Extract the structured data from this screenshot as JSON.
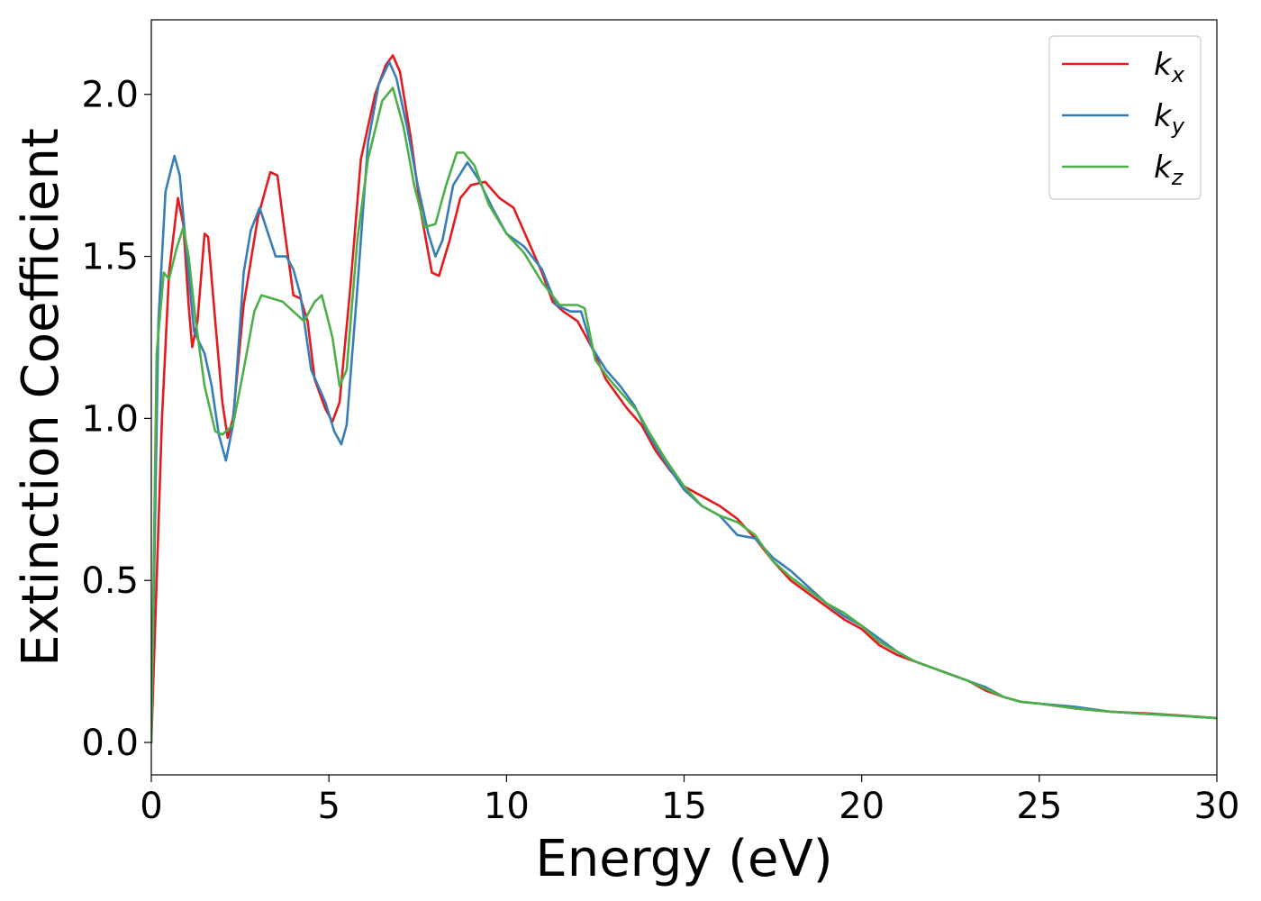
{
  "chart_data": {
    "type": "line",
    "title": "",
    "xlabel": "Energy (eV)",
    "ylabel": "Extinction Coefficient",
    "xlim": [
      0,
      30
    ],
    "ylim": [
      -0.1,
      2.23
    ],
    "xticks": [
      0,
      5,
      10,
      15,
      20,
      25,
      30
    ],
    "xtick_labels": [
      "0",
      "5",
      "10",
      "15",
      "20",
      "25",
      "30"
    ],
    "yticks": [
      0.0,
      0.5,
      1.0,
      1.5,
      2.0
    ],
    "ytick_labels": [
      "0.0",
      "0.5",
      "1.0",
      "1.5",
      "2.0"
    ],
    "grid": false,
    "legend_position": "top-right",
    "series": [
      {
        "name": "k_x",
        "base": "k",
        "sub": "x",
        "color": "#e41a1c",
        "points": [
          [
            0,
            0.0
          ],
          [
            0.3,
            1.0
          ],
          [
            0.5,
            1.45
          ],
          [
            0.75,
            1.68
          ],
          [
            0.9,
            1.6
          ],
          [
            1.05,
            1.35
          ],
          [
            1.15,
            1.22
          ],
          [
            1.3,
            1.3
          ],
          [
            1.5,
            1.57
          ],
          [
            1.6,
            1.56
          ],
          [
            1.8,
            1.3
          ],
          [
            2.0,
            1.05
          ],
          [
            2.15,
            0.94
          ],
          [
            2.3,
            1.0
          ],
          [
            2.6,
            1.35
          ],
          [
            3.0,
            1.62
          ],
          [
            3.35,
            1.76
          ],
          [
            3.55,
            1.75
          ],
          [
            3.75,
            1.58
          ],
          [
            4.0,
            1.38
          ],
          [
            4.2,
            1.37
          ],
          [
            4.4,
            1.3
          ],
          [
            4.6,
            1.12
          ],
          [
            4.9,
            1.03
          ],
          [
            5.1,
            0.99
          ],
          [
            5.3,
            1.05
          ],
          [
            5.6,
            1.4
          ],
          [
            5.9,
            1.8
          ],
          [
            6.3,
            2.0
          ],
          [
            6.6,
            2.09
          ],
          [
            6.8,
            2.12
          ],
          [
            7.0,
            2.07
          ],
          [
            7.3,
            1.87
          ],
          [
            7.6,
            1.63
          ],
          [
            7.9,
            1.45
          ],
          [
            8.1,
            1.44
          ],
          [
            8.4,
            1.55
          ],
          [
            8.7,
            1.68
          ],
          [
            9.0,
            1.72
          ],
          [
            9.4,
            1.73
          ],
          [
            9.8,
            1.68
          ],
          [
            10.2,
            1.65
          ],
          [
            10.6,
            1.55
          ],
          [
            11.0,
            1.45
          ],
          [
            11.3,
            1.36
          ],
          [
            11.6,
            1.33
          ],
          [
            12.0,
            1.3
          ],
          [
            12.4,
            1.22
          ],
          [
            12.8,
            1.12
          ],
          [
            13.4,
            1.03
          ],
          [
            13.8,
            0.98
          ],
          [
            14.2,
            0.9
          ],
          [
            14.6,
            0.84
          ],
          [
            15.0,
            0.79
          ],
          [
            15.5,
            0.76
          ],
          [
            16.0,
            0.73
          ],
          [
            16.5,
            0.69
          ],
          [
            17.0,
            0.63
          ],
          [
            17.5,
            0.56
          ],
          [
            18.0,
            0.5
          ],
          [
            18.5,
            0.46
          ],
          [
            19.0,
            0.42
          ],
          [
            19.5,
            0.38
          ],
          [
            20.0,
            0.35
          ],
          [
            20.5,
            0.3
          ],
          [
            21.0,
            0.27
          ],
          [
            21.5,
            0.25
          ],
          [
            22.0,
            0.23
          ],
          [
            22.5,
            0.21
          ],
          [
            23.0,
            0.19
          ],
          [
            23.5,
            0.16
          ],
          [
            24.0,
            0.14
          ],
          [
            24.5,
            0.125
          ],
          [
            25.0,
            0.12
          ],
          [
            26.0,
            0.105
          ],
          [
            27.0,
            0.095
          ],
          [
            28.0,
            0.09
          ],
          [
            29.0,
            0.083
          ],
          [
            30.0,
            0.075
          ]
        ]
      },
      {
        "name": "k_y",
        "base": "k",
        "sub": "y",
        "color": "#377eb8",
        "points": [
          [
            0,
            0.0
          ],
          [
            0.2,
            1.3
          ],
          [
            0.4,
            1.7
          ],
          [
            0.65,
            1.81
          ],
          [
            0.8,
            1.75
          ],
          [
            1.0,
            1.5
          ],
          [
            1.2,
            1.27
          ],
          [
            1.5,
            1.2
          ],
          [
            1.7,
            1.1
          ],
          [
            1.9,
            0.95
          ],
          [
            2.1,
            0.87
          ],
          [
            2.3,
            0.98
          ],
          [
            2.6,
            1.45
          ],
          [
            2.8,
            1.58
          ],
          [
            3.05,
            1.65
          ],
          [
            3.2,
            1.6
          ],
          [
            3.5,
            1.5
          ],
          [
            3.8,
            1.5
          ],
          [
            4.0,
            1.46
          ],
          [
            4.2,
            1.38
          ],
          [
            4.5,
            1.15
          ],
          [
            4.9,
            1.05
          ],
          [
            5.15,
            0.96
          ],
          [
            5.35,
            0.92
          ],
          [
            5.5,
            0.98
          ],
          [
            5.8,
            1.4
          ],
          [
            6.1,
            1.85
          ],
          [
            6.4,
            2.03
          ],
          [
            6.7,
            2.1
          ],
          [
            6.9,
            2.05
          ],
          [
            7.2,
            1.9
          ],
          [
            7.5,
            1.72
          ],
          [
            7.8,
            1.57
          ],
          [
            8.0,
            1.5
          ],
          [
            8.2,
            1.55
          ],
          [
            8.5,
            1.72
          ],
          [
            8.9,
            1.79
          ],
          [
            9.2,
            1.74
          ],
          [
            9.6,
            1.65
          ],
          [
            10.0,
            1.57
          ],
          [
            10.5,
            1.53
          ],
          [
            11.0,
            1.46
          ],
          [
            11.4,
            1.35
          ],
          [
            11.8,
            1.33
          ],
          [
            12.1,
            1.33
          ],
          [
            12.4,
            1.22
          ],
          [
            12.8,
            1.15
          ],
          [
            13.2,
            1.1
          ],
          [
            13.6,
            1.04
          ],
          [
            14.0,
            0.95
          ],
          [
            14.5,
            0.86
          ],
          [
            15.0,
            0.78
          ],
          [
            15.5,
            0.73
          ],
          [
            16.0,
            0.7
          ],
          [
            16.5,
            0.64
          ],
          [
            17.0,
            0.63
          ],
          [
            17.5,
            0.57
          ],
          [
            18.0,
            0.53
          ],
          [
            18.5,
            0.48
          ],
          [
            19.0,
            0.43
          ],
          [
            19.5,
            0.39
          ],
          [
            20.0,
            0.36
          ],
          [
            20.5,
            0.32
          ],
          [
            21.0,
            0.28
          ],
          [
            21.5,
            0.25
          ],
          [
            22.0,
            0.23
          ],
          [
            22.5,
            0.21
          ],
          [
            23.0,
            0.19
          ],
          [
            23.5,
            0.17
          ],
          [
            24.0,
            0.14
          ],
          [
            24.5,
            0.125
          ],
          [
            25.0,
            0.12
          ],
          [
            26.0,
            0.11
          ],
          [
            27.0,
            0.095
          ],
          [
            28.0,
            0.088
          ],
          [
            29.0,
            0.082
          ],
          [
            30.0,
            0.075
          ]
        ]
      },
      {
        "name": "k_z",
        "base": "k",
        "sub": "z",
        "color": "#4daf4a",
        "points": [
          [
            0,
            0.0
          ],
          [
            0.15,
            1.2
          ],
          [
            0.35,
            1.45
          ],
          [
            0.5,
            1.43
          ],
          [
            0.7,
            1.52
          ],
          [
            0.9,
            1.59
          ],
          [
            1.05,
            1.5
          ],
          [
            1.25,
            1.3
          ],
          [
            1.5,
            1.1
          ],
          [
            1.8,
            0.96
          ],
          [
            2.0,
            0.95
          ],
          [
            2.3,
            0.98
          ],
          [
            2.6,
            1.15
          ],
          [
            2.9,
            1.33
          ],
          [
            3.1,
            1.38
          ],
          [
            3.4,
            1.37
          ],
          [
            3.7,
            1.36
          ],
          [
            4.0,
            1.33
          ],
          [
            4.3,
            1.3
          ],
          [
            4.6,
            1.36
          ],
          [
            4.8,
            1.38
          ],
          [
            5.1,
            1.25
          ],
          [
            5.3,
            1.1
          ],
          [
            5.5,
            1.15
          ],
          [
            5.8,
            1.55
          ],
          [
            6.1,
            1.8
          ],
          [
            6.5,
            1.98
          ],
          [
            6.8,
            2.02
          ],
          [
            7.1,
            1.9
          ],
          [
            7.4,
            1.72
          ],
          [
            7.7,
            1.59
          ],
          [
            8.0,
            1.6
          ],
          [
            8.3,
            1.72
          ],
          [
            8.6,
            1.82
          ],
          [
            8.8,
            1.82
          ],
          [
            9.1,
            1.78
          ],
          [
            9.5,
            1.66
          ],
          [
            10.0,
            1.57
          ],
          [
            10.5,
            1.51
          ],
          [
            11.0,
            1.42
          ],
          [
            11.5,
            1.35
          ],
          [
            12.0,
            1.35
          ],
          [
            12.2,
            1.34
          ],
          [
            12.5,
            1.18
          ],
          [
            12.9,
            1.12
          ],
          [
            13.3,
            1.07
          ],
          [
            13.7,
            1.02
          ],
          [
            14.0,
            0.96
          ],
          [
            14.5,
            0.87
          ],
          [
            15.0,
            0.79
          ],
          [
            15.5,
            0.73
          ],
          [
            16.0,
            0.7
          ],
          [
            16.5,
            0.68
          ],
          [
            17.0,
            0.64
          ],
          [
            17.5,
            0.56
          ],
          [
            18.0,
            0.51
          ],
          [
            18.5,
            0.47
          ],
          [
            19.0,
            0.43
          ],
          [
            19.5,
            0.4
          ],
          [
            20.0,
            0.36
          ],
          [
            20.5,
            0.31
          ],
          [
            21.0,
            0.28
          ],
          [
            21.5,
            0.25
          ],
          [
            22.0,
            0.23
          ],
          [
            22.5,
            0.21
          ],
          [
            23.0,
            0.19
          ],
          [
            23.5,
            0.165
          ],
          [
            24.0,
            0.14
          ],
          [
            24.5,
            0.125
          ],
          [
            25.0,
            0.12
          ],
          [
            26.0,
            0.105
          ],
          [
            27.0,
            0.095
          ],
          [
            28.0,
            0.088
          ],
          [
            29.0,
            0.082
          ],
          [
            30.0,
            0.075
          ]
        ]
      }
    ]
  }
}
